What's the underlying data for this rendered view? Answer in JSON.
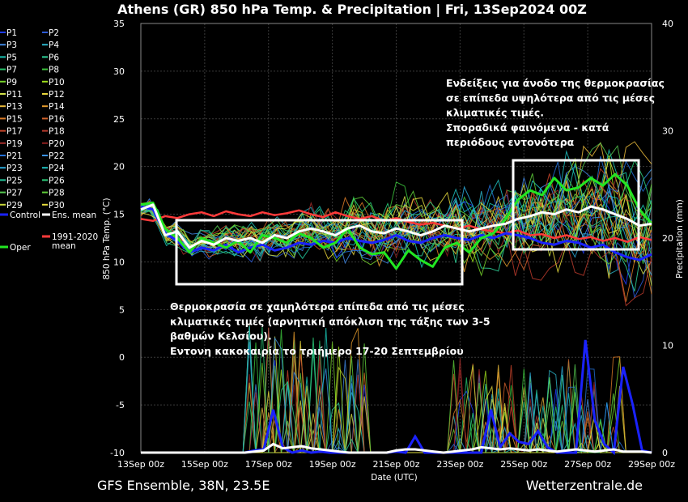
{
  "chart_data": {
    "type": "line",
    "title": "Athens  (GR)  850 hPa Temp. & Precipitation | Fri, 13Sep2024 00Z",
    "footer_left": "GFS Ensemble, 38N, 23.5E",
    "footer_right": "Wetterzentrale.de",
    "xlabel": "Date (UTC)",
    "ylabel_left": "850 hPa Temp. (°C)",
    "ylabel_right": "Precipitation (mm)",
    "x_ticks": [
      "13Sep 00z",
      "15Sep 00z",
      "17Sep 00z",
      "19Sep 00z",
      "21Sep 00z",
      "23Sep 00z",
      "25Sep 00z",
      "27Sep 00z",
      "29Sep 00z"
    ],
    "x_range_days": [
      0,
      16
    ],
    "y_left_ticks": [
      35,
      30,
      25,
      20,
      15,
      10,
      5,
      0,
      -5,
      -10
    ],
    "y_left_range": [
      -10,
      35
    ],
    "y_right_ticks": [
      40,
      30,
      20,
      10,
      0
    ],
    "y_right_range": [
      0,
      40
    ],
    "grid": true,
    "legend_placement": "left",
    "legend": [
      {
        "label": "P1",
        "color": "#1e3cff"
      },
      {
        "label": "P2",
        "color": "#2d5bd6"
      },
      {
        "label": "P3",
        "color": "#3f86e0"
      },
      {
        "label": "P4",
        "color": "#2bb3c8"
      },
      {
        "label": "P5",
        "color": "#19c5b4"
      },
      {
        "label": "P6",
        "color": "#2fd39a"
      },
      {
        "label": "P7",
        "color": "#27c46b"
      },
      {
        "label": "P8",
        "color": "#3cc43c"
      },
      {
        "label": "P9",
        "color": "#76d22a"
      },
      {
        "label": "P10",
        "color": "#9fe01b"
      },
      {
        "label": "P11",
        "color": "#d2e24a"
      },
      {
        "label": "P12",
        "color": "#e7d43b"
      },
      {
        "label": "P13",
        "color": "#e8b93a"
      },
      {
        "label": "P14",
        "color": "#e59b2c"
      },
      {
        "label": "P15",
        "color": "#db7a26"
      },
      {
        "label": "P16",
        "color": "#d3622a"
      },
      {
        "label": "P17",
        "color": "#c9452a"
      },
      {
        "label": "P18",
        "color": "#b93a2c"
      },
      {
        "label": "P19",
        "color": "#a22d2a"
      },
      {
        "label": "P20",
        "color": "#8c1e1e"
      },
      {
        "label": "P21",
        "color": "#2270d8"
      },
      {
        "label": "P22",
        "color": "#3a92e8"
      },
      {
        "label": "P23",
        "color": "#2aa8d8"
      },
      {
        "label": "P24",
        "color": "#1ec0c0"
      },
      {
        "label": "P25",
        "color": "#22c89c"
      },
      {
        "label": "P26",
        "color": "#2bd07a"
      },
      {
        "label": "P27",
        "color": "#55c850"
      },
      {
        "label": "P28",
        "color": "#5fd03a"
      },
      {
        "label": "P29",
        "color": "#c8d83a"
      },
      {
        "label": "P30",
        "color": "#e6dc3c"
      },
      {
        "label": "Control",
        "color": "#1a22ff"
      },
      {
        "label": "Ens. mean",
        "color": "#ffffff"
      },
      {
        "label": "Oper",
        "color": "#22e622"
      },
      {
        "label": "1991-2020 mean",
        "color": "#ff3a3a"
      }
    ],
    "series": [
      {
        "name": "Ens. mean",
        "color": "#ffffff",
        "width": 3,
        "values": [
          15.5,
          16.0,
          12.8,
          13.2,
          11.5,
          12.2,
          11.8,
          12.5,
          12.2,
          12.5,
          12.0,
          12.8,
          12.5,
          13.2,
          13.5,
          13.2,
          12.8,
          13.5,
          13.8,
          13.2,
          13.0,
          13.5,
          13.2,
          12.8,
          13.2,
          13.8,
          13.5,
          13.2,
          13.5,
          13.8,
          14.0,
          14.5,
          14.8,
          15.2,
          15.0,
          15.5,
          15.2,
          15.8,
          15.5,
          15.0,
          14.5,
          13.8,
          14.0
        ]
      },
      {
        "name": "Oper",
        "color": "#22e622",
        "width": 3,
        "values": [
          16.0,
          16.2,
          13.5,
          12.5,
          11.0,
          12.5,
          12.0,
          11.5,
          12.2,
          11.0,
          12.8,
          12.5,
          12.0,
          13.0,
          12.5,
          11.5,
          12.0,
          13.5,
          11.5,
          10.8,
          11.0,
          9.3,
          11.2,
          10.2,
          9.5,
          11.5,
          12.0,
          11.0,
          12.5,
          13.0,
          14.5,
          16.5,
          17.5,
          17.0,
          18.8,
          17.5,
          17.8,
          18.8,
          18.0,
          19.2,
          18.0,
          15.5,
          14.0
        ]
      },
      {
        "name": "Control",
        "color": "#1a22ff",
        "width": 3,
        "values": [
          15.8,
          15.5,
          13.0,
          12.2,
          11.0,
          11.5,
          11.2,
          11.8,
          11.0,
          11.5,
          11.8,
          11.2,
          11.5,
          12.0,
          11.8,
          12.2,
          12.0,
          12.5,
          12.2,
          12.0,
          12.3,
          12.8,
          12.2,
          12.0,
          12.5,
          12.8,
          12.5,
          12.3,
          12.8,
          12.5,
          13.0,
          12.8,
          12.5,
          12.0,
          11.8,
          12.2,
          12.0,
          11.5,
          11.8,
          11.0,
          10.5,
          10.2,
          10.8
        ]
      },
      {
        "name": "1991-2020 mean",
        "color": "#ff3a3a",
        "width": 2.5,
        "values": [
          14.5,
          14.3,
          14.8,
          14.6,
          15.0,
          15.2,
          14.8,
          15.3,
          15.0,
          14.8,
          15.2,
          14.9,
          15.1,
          15.4,
          15.0,
          14.7,
          15.2,
          14.8,
          14.5,
          14.8,
          14.3,
          14.6,
          14.2,
          13.9,
          14.1,
          13.8,
          13.5,
          13.8,
          13.4,
          13.2,
          13.0,
          13.3,
          12.8,
          12.9,
          12.5,
          12.8,
          12.4,
          12.6,
          12.2,
          12.5,
          12.1,
          12.6,
          12.3
        ]
      }
    ],
    "precip_series": [
      {
        "name": "Control",
        "color": "#1a22ff",
        "width": 3,
        "values": [
          0,
          0,
          0,
          0,
          0,
          0,
          0,
          0,
          0,
          0,
          0,
          0,
          0.2,
          0.3,
          4.0,
          0.5,
          0,
          0.2,
          0,
          0.1,
          0,
          0,
          0,
          0,
          0,
          0,
          0,
          0.1,
          0,
          1.5,
          0,
          0,
          0,
          0,
          0,
          0,
          0,
          4.0,
          0.5,
          1.8,
          1.0,
          0.8,
          2.0,
          0.5,
          0,
          0,
          0,
          10.5,
          3.0,
          0.8,
          0,
          8.0,
          4.5,
          0.2,
          0
        ]
      },
      {
        "name": "Ens. mean",
        "color": "#ffffff",
        "width": 3,
        "values": [
          0,
          0,
          0,
          0,
          0,
          0,
          0,
          0,
          0,
          0,
          0,
          0,
          0.1,
          0.2,
          0.8,
          0.4,
          0.5,
          0.6,
          0.4,
          0.3,
          0.2,
          0.1,
          0,
          0,
          0,
          0,
          0,
          0.2,
          0.3,
          0.3,
          0.2,
          0.1,
          0,
          0.1,
          0.2,
          0.3,
          0.5,
          0.4,
          0.3,
          0.4,
          0.3,
          0.2,
          0.3,
          0.2,
          0.1,
          0.2,
          0.3,
          0.2,
          0.1,
          0.2,
          0.3,
          0.1,
          0.1,
          0.1,
          0
        ]
      }
    ],
    "annotations": [
      {
        "lines": [
          "Ενδείξεις για άνοδο της θερμοκρασίας",
          "σε επίπεδα υψηλότερα από τις μέσες",
          "κλιματικές τιμές.",
          "Σποραδικά φαινόμενα - κατά",
          "περιόδους εντονότερα"
        ]
      },
      {
        "lines": [
          "Θερμοκρασία σε χαμηλότερα επίπεδα από τις μέσες",
          "κλιματικές τιμές (αρνητική απόκλιση της τάξης των 3-5",
          "βαθμών Κελσίου).",
          "Εντονη κακοκαιρία το τριήμερο 17-20 Σεπτεμβρίου"
        ]
      }
    ]
  }
}
